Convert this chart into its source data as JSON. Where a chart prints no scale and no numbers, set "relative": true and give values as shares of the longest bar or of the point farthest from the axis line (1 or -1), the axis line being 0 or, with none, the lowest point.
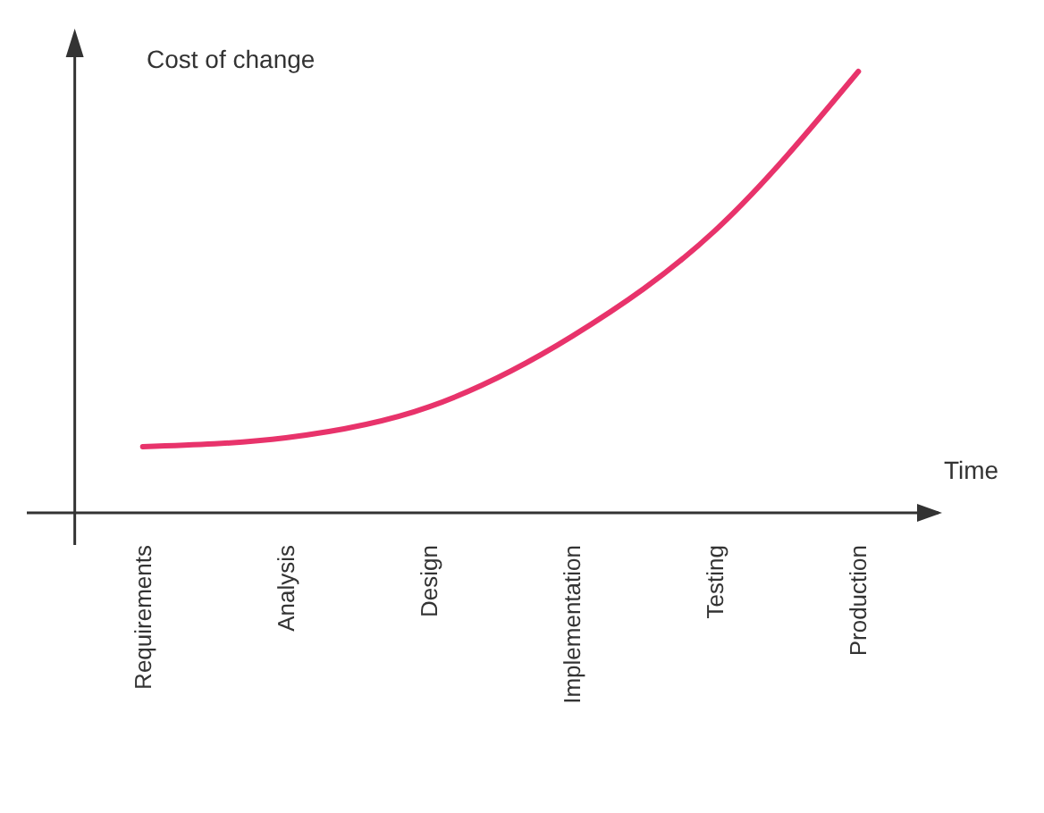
{
  "chart_data": {
    "type": "line",
    "ylabel": "Cost of change",
    "xlabel": "Time",
    "relative": true,
    "categories": [
      "Requirements",
      "Analysis",
      "Design",
      "Implementation",
      "Testing",
      "Production"
    ],
    "series": [
      {
        "color": "#e8336b",
        "values": [
          0.15,
          0.17,
          0.24,
          0.4,
          0.64,
          1.0
        ]
      }
    ],
    "marker": "none",
    "line_style": "solid"
  }
}
